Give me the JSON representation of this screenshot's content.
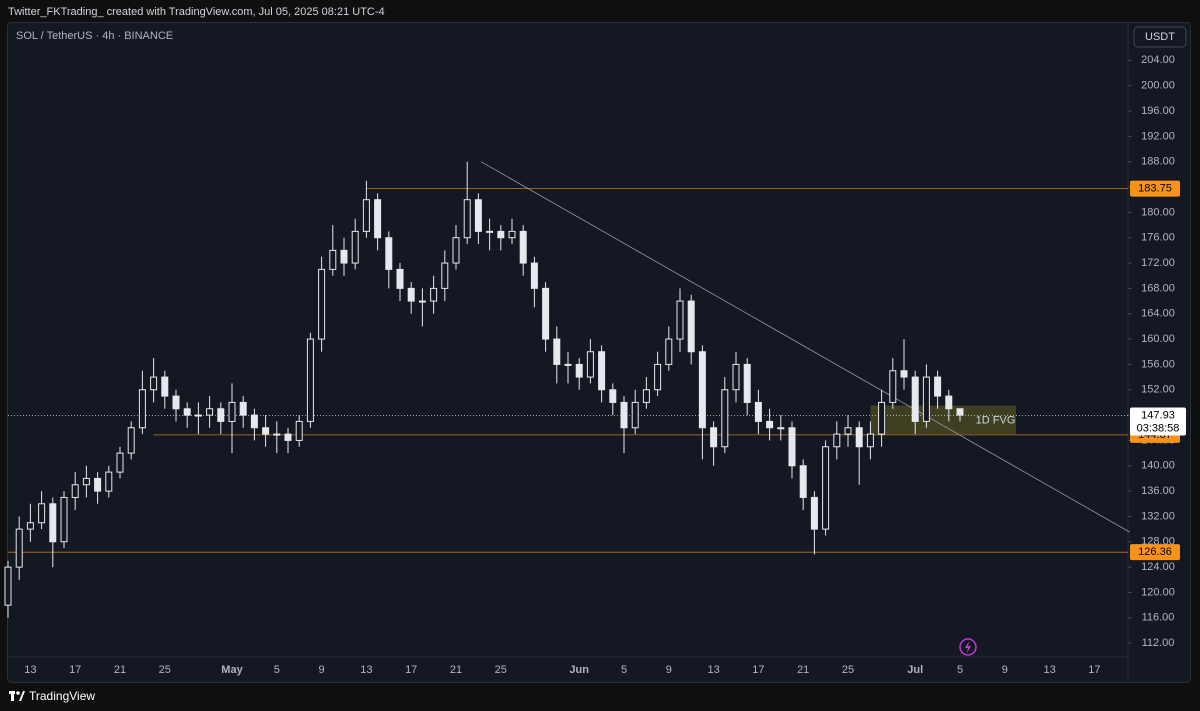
{
  "header": {
    "text": "Twitter_FKTrading_ created with TradingView.com, Jul 05, 2025 08:21 UTC-4"
  },
  "footer": {
    "brand": "TradingView"
  },
  "chart_data": {
    "type": "candlestick",
    "title": "SOL / TetherUS · 4h · BINANCE",
    "y_axis_label": "USDT",
    "color": "#e6e8ee",
    "categories": [
      null,
      null,
      "13",
      null,
      null,
      null,
      "17",
      null,
      null,
      null,
      "21",
      null,
      null,
      null,
      "25",
      null,
      null,
      null,
      null,
      null,
      "May",
      null,
      null,
      null,
      "5",
      null,
      null,
      null,
      "9",
      null,
      null,
      null,
      "13",
      null,
      null,
      null,
      "17",
      null,
      null,
      null,
      "21",
      null,
      null,
      null,
      "25",
      null,
      null,
      null,
      null,
      null,
      null,
      "Jun",
      null,
      null,
      null,
      "5",
      null,
      null,
      null,
      "9",
      null,
      null,
      null,
      "13",
      null,
      null,
      null,
      "17",
      null,
      null,
      null,
      "21",
      null,
      null,
      null,
      "25",
      null,
      null,
      null,
      null,
      null,
      "Jul",
      null,
      null,
      null,
      "5",
      null,
      null,
      null,
      "9",
      null,
      null,
      null,
      "13",
      null,
      null,
      null,
      "17",
      null,
      null,
      null
    ],
    "open": [
      118,
      124,
      130,
      131,
      134,
      128,
      135,
      137,
      138,
      136,
      139,
      142,
      146,
      152,
      154,
      151,
      149,
      148,
      148,
      149,
      147,
      150,
      148,
      146,
      145,
      145,
      144,
      147,
      160,
      171,
      174,
      172,
      177,
      182,
      176,
      171,
      168,
      166,
      166,
      168,
      172,
      176,
      182,
      177,
      177,
      176,
      177,
      172,
      168,
      160,
      156,
      156,
      154,
      158,
      152,
      150,
      146,
      150,
      152,
      156,
      160,
      166,
      158,
      146,
      143,
      152,
      156,
      150,
      147,
      146,
      146,
      140,
      135,
      130,
      143,
      145,
      146,
      143,
      145,
      150,
      155,
      154,
      147,
      154,
      151,
      149,
      null,
      null,
      null,
      null,
      null,
      null,
      null,
      null,
      null,
      null,
      null,
      null,
      null,
      null,
      null
    ],
    "high": [
      125,
      132,
      134,
      136,
      135,
      136,
      139,
      140,
      139,
      140,
      143,
      147,
      155,
      157,
      155,
      152,
      150,
      150,
      151,
      150,
      153,
      151,
      149,
      148,
      147,
      146,
      148,
      161,
      173,
      178,
      176,
      179,
      185,
      183,
      177,
      172,
      169,
      168,
      170,
      174,
      178,
      188,
      183,
      179,
      178,
      179,
      178,
      173,
      169,
      162,
      158,
      157,
      160,
      159,
      153,
      151,
      152,
      154,
      158,
      162,
      168,
      167,
      159,
      147,
      154,
      158,
      157,
      152,
      149,
      148,
      147,
      141,
      136,
      144,
      147,
      148,
      147,
      147,
      152,
      157,
      160,
      155,
      156,
      155,
      152,
      149,
      null,
      null,
      null,
      null,
      null,
      null,
      null,
      null,
      null,
      null,
      null,
      null,
      null,
      null,
      null
    ],
    "low": [
      116,
      122,
      128,
      130,
      124,
      127,
      133,
      135,
      134,
      135,
      138,
      141,
      145,
      150,
      149,
      147,
      146,
      145,
      146,
      145,
      142,
      146,
      144,
      143,
      142,
      142,
      143,
      146,
      158,
      170,
      170,
      171,
      176,
      174,
      168,
      166,
      164,
      162,
      164,
      166,
      171,
      175,
      175,
      174,
      174,
      175,
      170,
      165,
      158,
      153,
      153,
      152,
      153,
      150,
      148,
      142,
      145,
      149,
      151,
      155,
      158,
      156,
      141,
      140,
      142,
      150,
      148,
      145,
      144,
      144,
      138,
      133,
      126,
      129,
      141,
      143,
      137,
      141,
      143,
      149,
      152,
      145,
      146,
      149,
      147,
      147,
      null,
      null,
      null,
      null,
      null,
      null,
      null,
      null,
      null,
      null,
      null,
      null,
      null,
      null,
      null
    ],
    "close": [
      124,
      130,
      131,
      134,
      128,
      135,
      137,
      138,
      136,
      139,
      142,
      146,
      152,
      154,
      151,
      149,
      148,
      148,
      149,
      147,
      150,
      148,
      146,
      145,
      145,
      144,
      147,
      160,
      171,
      174,
      172,
      177,
      182,
      176,
      171,
      168,
      166,
      166,
      168,
      172,
      176,
      182,
      177,
      177,
      176,
      177,
      172,
      168,
      160,
      156,
      156,
      154,
      158,
      152,
      150,
      146,
      150,
      152,
      156,
      160,
      166,
      158,
      146,
      143,
      152,
      156,
      150,
      147,
      146,
      146,
      140,
      135,
      130,
      143,
      145,
      146,
      143,
      145,
      150,
      155,
      154,
      147,
      154,
      151,
      149,
      148,
      null,
      null,
      null,
      null,
      null,
      null,
      null,
      null,
      null,
      null,
      null,
      null,
      null,
      null,
      null
    ],
    "ylim": [
      110.6,
      208
    ],
    "yticks": [
      {
        "value": 112,
        "label": "112.00"
      },
      {
        "value": 116,
        "label": "116.00"
      },
      {
        "value": 120,
        "label": "120.00"
      },
      {
        "value": 124,
        "label": "124.00"
      },
      {
        "value": 128,
        "label": "128.00"
      },
      {
        "value": 132,
        "label": "132.00"
      },
      {
        "value": 136,
        "label": "136.00"
      },
      {
        "value": 140,
        "label": "140.00"
      },
      {
        "value": 144,
        "label": "144.00"
      },
      {
        "value": 148,
        "label": "148.00"
      },
      {
        "value": 152,
        "label": "152.00"
      },
      {
        "value": 156,
        "label": "156.00"
      },
      {
        "value": 160,
        "label": "160.00"
      },
      {
        "value": 164,
        "label": "164.00"
      },
      {
        "value": 168,
        "label": "168.00"
      },
      {
        "value": 172,
        "label": "172.00"
      },
      {
        "value": 176,
        "label": "176.00"
      },
      {
        "value": 180,
        "label": "180.00"
      },
      {
        "value": 184,
        "label": "184.00"
      },
      {
        "value": 188,
        "label": "188.00"
      },
      {
        "value": 192,
        "label": "192.00"
      },
      {
        "value": 196,
        "label": "196.00"
      },
      {
        "value": 200,
        "label": "200.00"
      },
      {
        "value": 204,
        "label": "204.00"
      }
    ],
    "levels": [
      {
        "value": 183.75,
        "color": "#f7931a"
      },
      {
        "value": 144.87,
        "color": "#f7931a"
      },
      {
        "value": 126.36,
        "color": "#f7931a"
      }
    ],
    "last_price": 147.93,
    "countdown": "03:38:58",
    "zone": {
      "label": "1D FVG",
      "top": 149.5,
      "bottom": 145,
      "color": "#4a4a22"
    },
    "trendline": [
      188,
      129.5
    ]
  }
}
